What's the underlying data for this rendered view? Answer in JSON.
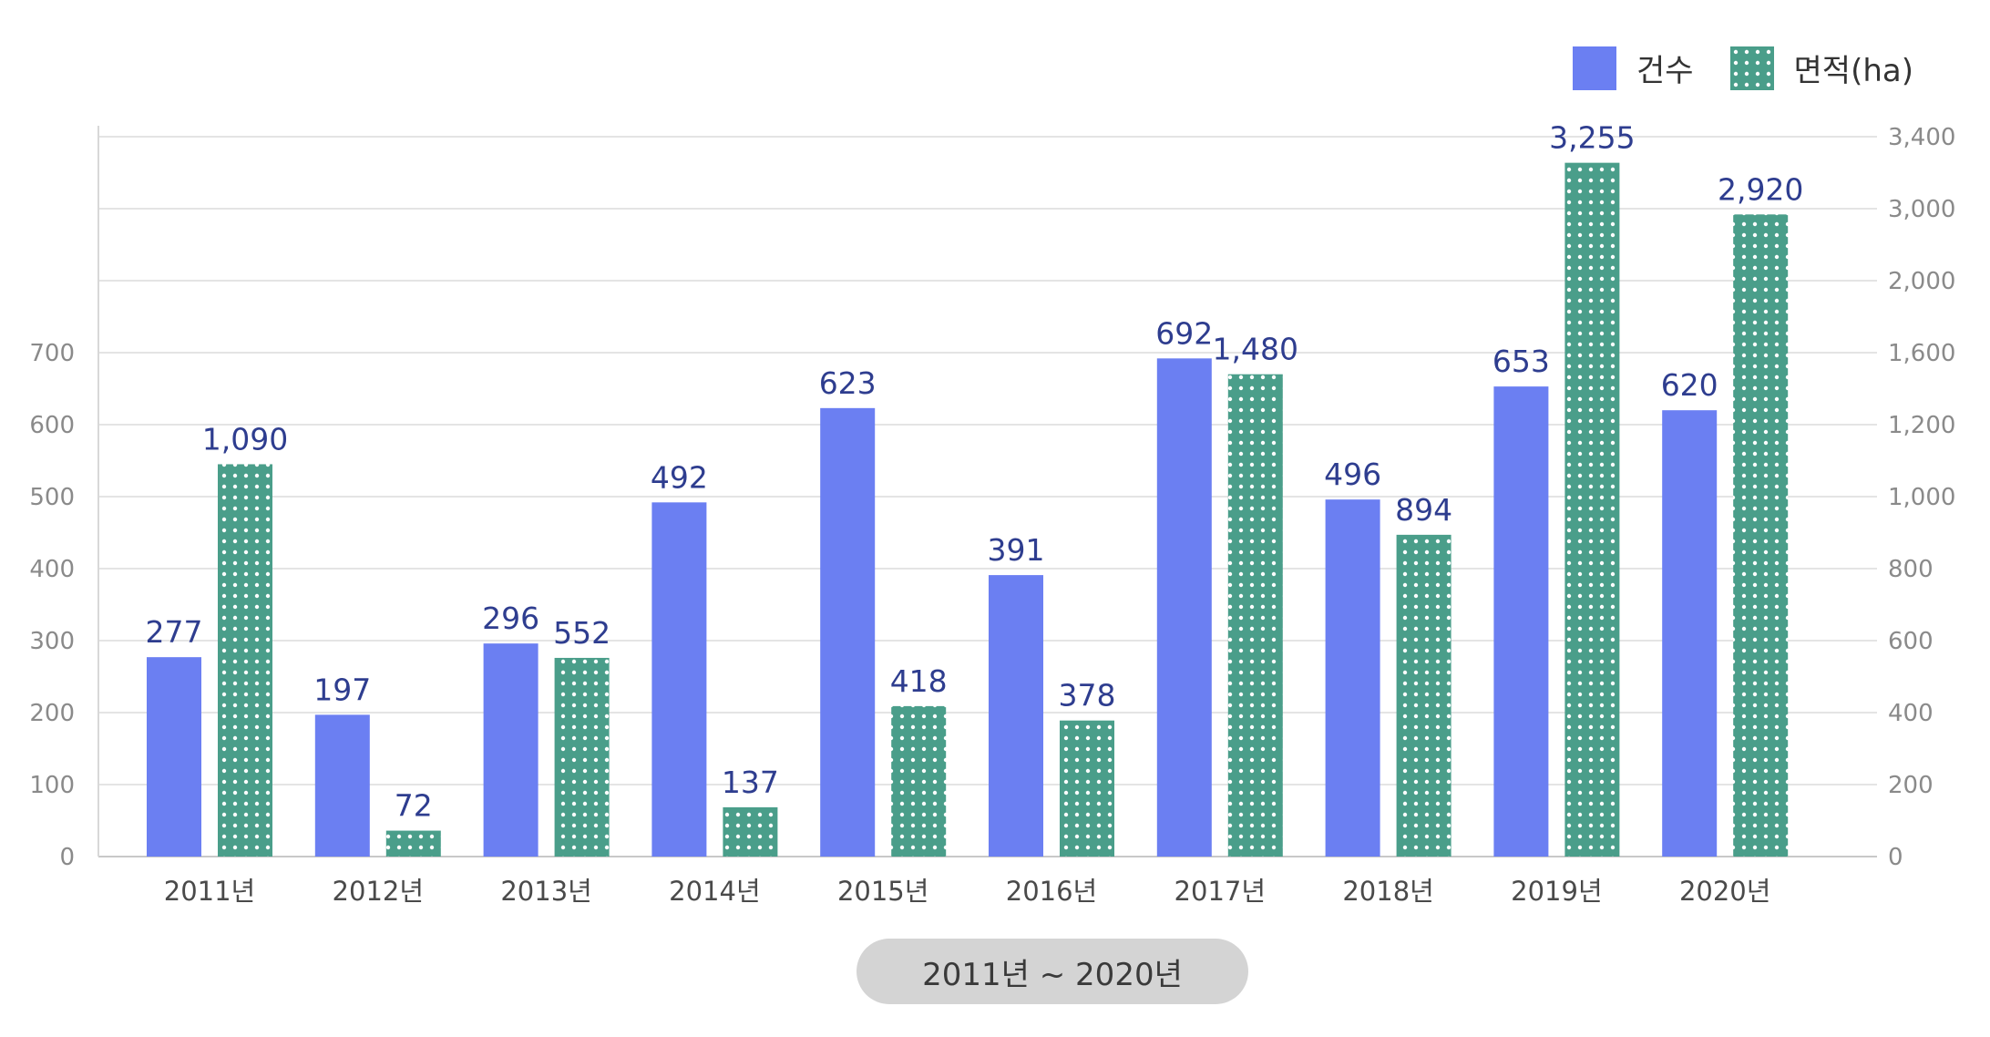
{
  "legend": {
    "count_label": "건수",
    "area_label": "면적(ha)"
  },
  "range_label": "2011년 ~ 2020년",
  "colors": {
    "count": "#6b7ff2",
    "area": "#4a9e8a",
    "area_dots": "#ffffff",
    "grid": "#e4e4e4",
    "label": "#2e3d8f"
  },
  "chart_data": {
    "type": "bar",
    "categories": [
      "2011년",
      "2012년",
      "2013년",
      "2014년",
      "2015년",
      "2016년",
      "2017년",
      "2018년",
      "2019년",
      "2020년"
    ],
    "series": [
      {
        "name": "건수",
        "axis": "left",
        "values": [
          277,
          197,
          296,
          492,
          623,
          391,
          692,
          496,
          653,
          620
        ],
        "labels": [
          "277",
          "197",
          "296",
          "492",
          "623",
          "391",
          "692",
          "496",
          "653",
          "620"
        ]
      },
      {
        "name": "면적(ha)",
        "axis": "right",
        "values": [
          1090,
          72,
          552,
          137,
          418,
          378,
          1480,
          894,
          3255,
          2920
        ],
        "labels": [
          "1,090",
          "72",
          "552",
          "137",
          "418",
          "378",
          "1,480",
          "894",
          "3,255",
          "2,920"
        ]
      }
    ],
    "left_axis_ticks": [
      "0",
      "100",
      "200",
      "300",
      "400",
      "500",
      "600",
      "700"
    ],
    "right_axis_ticks": [
      "0",
      "200",
      "400",
      "600",
      "800",
      "1,000",
      "1,200",
      "1,600",
      "2,000",
      "3,000",
      "3,400"
    ],
    "grid": true,
    "legend_position": "top-right",
    "axis_scale": "broken / non-linear (right axis)"
  }
}
